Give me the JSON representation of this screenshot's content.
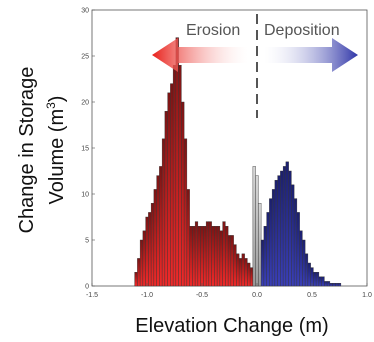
{
  "chart_data": {
    "type": "bar",
    "xlabel": "Elevation Change (m)",
    "ylabel_line1": "Change in Storage",
    "ylabel_line2": "Volume (m",
    "ylabel_sup": "3",
    "ylabel_close": ")",
    "xlim": [
      -1.5,
      1.0
    ],
    "ylim": [
      0,
      30
    ],
    "xticks": [
      -1.5,
      -1.0,
      -0.5,
      0.0,
      0.5,
      1.0
    ],
    "xtick_labels": [
      "-1.5",
      "-1.0",
      "-0.5",
      "0.0",
      "0.5",
      "1.0"
    ],
    "yticks": [
      0,
      5,
      10,
      15,
      20,
      25,
      30
    ],
    "ytick_labels": [
      "0",
      "5",
      "10",
      "15",
      "20",
      "25",
      "30"
    ],
    "bin_width": 0.025,
    "annotations": {
      "left": "Erosion",
      "right": "Deposition"
    },
    "series": [
      {
        "category": "erosion",
        "color": "#d32323",
        "x": [
          -1.1,
          -1.075,
          -1.05,
          -1.025,
          -1.0,
          -0.975,
          -0.95,
          -0.925,
          -0.9,
          -0.875,
          -0.85,
          -0.825,
          -0.8,
          -0.775,
          -0.75,
          -0.725,
          -0.7,
          -0.675,
          -0.65,
          -0.625,
          -0.6,
          -0.575,
          -0.55,
          -0.525,
          -0.5,
          -0.475,
          -0.45,
          -0.425,
          -0.4,
          -0.375,
          -0.35,
          -0.325,
          -0.3,
          -0.275,
          -0.25,
          -0.225,
          -0.2,
          -0.175,
          -0.15,
          -0.125,
          -0.1,
          -0.075,
          -0.05
        ],
        "values": [
          1.5,
          3,
          5,
          6,
          7.5,
          8,
          9,
          10.5,
          12,
          13,
          16,
          19,
          21,
          22,
          24,
          27,
          24,
          20,
          16,
          10.5,
          6.5,
          6.5,
          7,
          6.5,
          6.5,
          6.5,
          7,
          7,
          6.5,
          6.5,
          6.5,
          6,
          7,
          6.5,
          5.5,
          5.5,
          4.5,
          3.5,
          3,
          3.5,
          3,
          2.5,
          2
        ]
      },
      {
        "category": "no-change",
        "color": "#b3b3b3",
        "x": [
          -0.025,
          0.0,
          0.025
        ],
        "values": [
          13,
          12,
          9
        ]
      },
      {
        "category": "deposition",
        "color": "#2a2f9c",
        "x": [
          0.05,
          0.075,
          0.1,
          0.125,
          0.15,
          0.175,
          0.2,
          0.225,
          0.25,
          0.275,
          0.3,
          0.325,
          0.35,
          0.375,
          0.4,
          0.425,
          0.45,
          0.475,
          0.5,
          0.525,
          0.55,
          0.575,
          0.6,
          0.625,
          0.65,
          0.675,
          0.7,
          0.725,
          0.75
        ],
        "values": [
          5,
          6.5,
          8,
          9.5,
          10.5,
          11.5,
          12,
          12.5,
          13,
          13.5,
          12.5,
          11,
          9.5,
          8,
          6,
          5,
          3.5,
          2.5,
          2,
          1.5,
          1.5,
          1,
          1,
          0.5,
          0.5,
          0.3,
          0.3,
          0.3,
          0.3
        ]
      }
    ]
  }
}
